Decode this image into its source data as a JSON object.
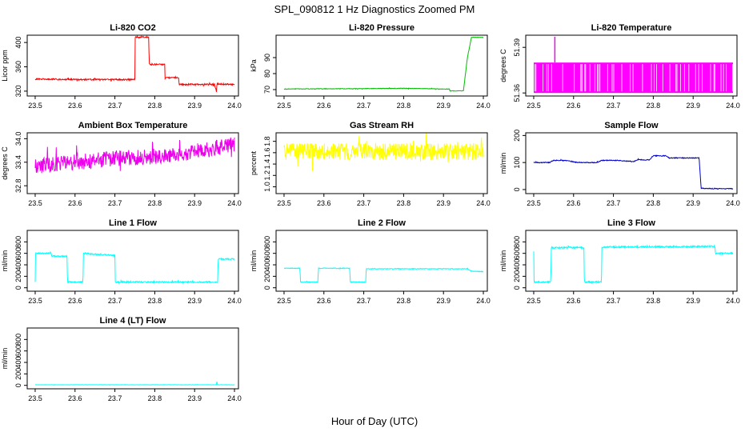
{
  "figure_title": "SPL_090812  1 Hz Diagnostics Zoomed PM",
  "x_axis_label": "Hour of Day (UTC)",
  "chart_data": [
    {
      "type": "line",
      "title": "Li-820 CO2",
      "ylabel": "Licor ppm",
      "color": "#ff0000",
      "xlim": [
        23.48,
        24.01
      ],
      "ylim": [
        312,
        412
      ],
      "yticks": [
        320,
        360,
        400
      ],
      "ytick_labels": [
        "320",
        "360",
        "400"
      ],
      "xticks": [
        23.5,
        23.6,
        23.7,
        23.8,
        23.9,
        24.0
      ],
      "xtick_labels": [
        "23.5",
        "23.6",
        "23.7",
        "23.8",
        "23.9",
        "24.0"
      ],
      "x": [
        23.5,
        23.6,
        23.7,
        23.75,
        23.751,
        23.785,
        23.786,
        23.825,
        23.826,
        23.86,
        23.861,
        23.95,
        23.955,
        23.956,
        24.0
      ],
      "y": [
        340,
        339,
        339,
        339,
        409,
        409,
        364,
        364,
        342,
        342,
        331,
        331,
        318,
        332,
        331
      ],
      "noise": 1.2
    },
    {
      "type": "line",
      "title": "Li-820 Pressure",
      "ylabel": "kPa",
      "color": "#00bb00",
      "xlim": [
        23.48,
        24.01
      ],
      "ylim": [
        66,
        104
      ],
      "yticks": [
        70,
        80,
        90
      ],
      "ytick_labels": [
        "70",
        "80",
        "90"
      ],
      "xticks": [
        23.5,
        23.6,
        23.7,
        23.8,
        23.9,
        24.0
      ],
      "xtick_labels": [
        "23.5",
        "23.6",
        "23.7",
        "23.8",
        "23.9",
        "24.0"
      ],
      "x": [
        23.5,
        23.7,
        23.8,
        23.9,
        23.915,
        23.916,
        23.95,
        23.96,
        23.97,
        24.0
      ],
      "y": [
        70.4,
        70.6,
        70.8,
        70.4,
        70.3,
        69.2,
        69.2,
        90,
        102.6,
        102.6
      ],
      "noise": 0.15
    },
    {
      "type": "bars",
      "title": "Li-820 Temperature",
      "ylabel": "degrees C",
      "color": "#ff00ff",
      "xlim": [
        23.48,
        24.01
      ],
      "ylim": [
        51.358,
        51.398
      ],
      "yticks": [
        51.36,
        51.39
      ],
      "ytick_labels": [
        "51.36",
        "51.39"
      ],
      "xticks": [
        23.5,
        23.6,
        23.7,
        23.8,
        23.9,
        24.0
      ],
      "xtick_labels": [
        "23.5",
        "23.6",
        "23.7",
        "23.8",
        "23.9",
        "24.0"
      ],
      "x_start": 23.5,
      "x_end": 24.0,
      "low": 51.36,
      "high": 51.38,
      "spike_x": 23.553,
      "spike_y": 51.397
    },
    {
      "type": "line",
      "title": "Ambient Box Temperature",
      "ylabel": "degrees C",
      "color": "#ee00ee",
      "xlim": [
        23.48,
        24.01
      ],
      "ylim": [
        32.6,
        34.15
      ],
      "yticks": [
        32.8,
        33.4,
        34.0
      ],
      "ytick_labels": [
        "32.8",
        "33.4",
        "34.0"
      ],
      "xticks": [
        23.5,
        23.6,
        23.7,
        23.8,
        23.9,
        24.0
      ],
      "xtick_labels": [
        "23.5",
        "23.6",
        "23.7",
        "23.8",
        "23.9",
        "24.0"
      ],
      "x": [
        23.5,
        23.6,
        23.7,
        23.8,
        23.9,
        24.0
      ],
      "y": [
        33.3,
        33.4,
        33.5,
        33.55,
        33.65,
        33.85
      ],
      "noise": 0.2
    },
    {
      "type": "line",
      "title": "Gas Stream RH",
      "ylabel": "percent",
      "color": "#ffff00",
      "xlim": [
        23.48,
        24.01
      ],
      "ylim": [
        0.88,
        1.95
      ],
      "yticks": [
        1.0,
        1.2,
        1.4,
        1.6,
        1.8
      ],
      "ytick_labels": [
        "1.0",
        "1.2",
        "1.4",
        "1.6",
        "1.8"
      ],
      "xticks": [
        23.5,
        23.6,
        23.7,
        23.8,
        23.9,
        24.0
      ],
      "xtick_labels": [
        "23.5",
        "23.6",
        "23.7",
        "23.8",
        "23.9",
        "24.0"
      ],
      "x": [
        23.5,
        24.0
      ],
      "y": [
        1.62,
        1.62
      ],
      "noise": 0.15
    },
    {
      "type": "line",
      "title": "Sample Flow",
      "ylabel": "ml/min",
      "color": "#0000cc",
      "xlim": [
        23.48,
        24.01
      ],
      "ylim": [
        -15,
        210
      ],
      "yticks": [
        0,
        100,
        200
      ],
      "ytick_labels": [
        "0",
        "100",
        "200"
      ],
      "xticks": [
        23.5,
        23.6,
        23.7,
        23.8,
        23.9,
        24.0
      ],
      "xtick_labels": [
        "23.5",
        "23.6",
        "23.7",
        "23.8",
        "23.9",
        "24.0"
      ],
      "x": [
        23.5,
        23.54,
        23.55,
        23.58,
        23.61,
        23.66,
        23.67,
        23.71,
        23.75,
        23.76,
        23.79,
        23.8,
        23.83,
        23.84,
        23.915,
        23.92,
        23.95,
        24.0
      ],
      "y": [
        100,
        100,
        108,
        108,
        100,
        100,
        108,
        108,
        103,
        110,
        110,
        125,
        125,
        117,
        117,
        5,
        3,
        3
      ],
      "noise": 1.5
    },
    {
      "type": "line",
      "title": "Line 1 Flow",
      "ylabel": "ml/min",
      "color": "#00ffff",
      "xlim": [
        23.48,
        24.01
      ],
      "ylim": [
        -60,
        1000
      ],
      "yticks": [
        0,
        200,
        400,
        600,
        800
      ],
      "ytick_labels": [
        "0",
        "200",
        "400",
        "600",
        "800"
      ],
      "xticks": [
        23.5,
        23.6,
        23.7,
        23.8,
        23.9,
        24.0
      ],
      "xtick_labels": [
        "23.5",
        "23.6",
        "23.7",
        "23.8",
        "23.9",
        "24.0"
      ],
      "x": [
        23.5,
        23.501,
        23.54,
        23.541,
        23.58,
        23.581,
        23.62,
        23.621,
        23.7,
        23.701,
        23.958,
        23.959,
        24.0
      ],
      "y": [
        100,
        600,
        600,
        550,
        550,
        100,
        100,
        600,
        560,
        100,
        100,
        500,
        500
      ],
      "noise": 12
    },
    {
      "type": "line",
      "title": "Line 2 Flow",
      "ylabel": "ml/min",
      "color": "#00ffff",
      "xlim": [
        23.48,
        24.01
      ],
      "ylim": [
        -60,
        1000
      ],
      "yticks": [
        0,
        200,
        400,
        600,
        800
      ],
      "ytick_labels": [
        "0",
        "200",
        "400",
        "600",
        "800"
      ],
      "xticks": [
        23.5,
        23.6,
        23.7,
        23.8,
        23.9,
        24.0
      ],
      "xtick_labels": [
        "23.5",
        "23.6",
        "23.7",
        "23.8",
        "23.9",
        "24.0"
      ],
      "x": [
        23.5,
        23.54,
        23.541,
        23.585,
        23.586,
        23.665,
        23.666,
        23.705,
        23.706,
        23.96,
        23.97,
        24.0
      ],
      "y": [
        340,
        340,
        100,
        100,
        340,
        340,
        100,
        100,
        330,
        330,
        290,
        280
      ],
      "noise": 6
    },
    {
      "type": "line",
      "title": "Line 3 Flow",
      "ylabel": "ml/min",
      "color": "#00ffff",
      "xlim": [
        23.48,
        24.01
      ],
      "ylim": [
        -60,
        1000
      ],
      "yticks": [
        0,
        200,
        400,
        600,
        800
      ],
      "ytick_labels": [
        "0",
        "200",
        "400",
        "600",
        "800"
      ],
      "xticks": [
        23.5,
        23.6,
        23.7,
        23.8,
        23.9,
        24.0
      ],
      "xtick_labels": [
        "23.5",
        "23.6",
        "23.7",
        "23.8",
        "23.9",
        "24.0"
      ],
      "x": [
        23.5,
        23.501,
        23.502,
        23.543,
        23.544,
        23.626,
        23.627,
        23.67,
        23.671,
        23.955,
        23.956,
        24.0
      ],
      "y": [
        650,
        100,
        100,
        100,
        700,
        700,
        100,
        100,
        710,
        720,
        600,
        600
      ],
      "noise": 14
    },
    {
      "type": "line",
      "title": "Line 4 (LT) Flow",
      "ylabel": "ml/min",
      "color": "#00ffff",
      "xlim": [
        23.48,
        24.01
      ],
      "ylim": [
        -60,
        1000
      ],
      "yticks": [
        0,
        200,
        400,
        600,
        800
      ],
      "ytick_labels": [
        "0",
        "200",
        "400",
        "600",
        "800"
      ],
      "xticks": [
        23.5,
        23.6,
        23.7,
        23.8,
        23.9,
        24.0
      ],
      "xtick_labels": [
        "23.5",
        "23.6",
        "23.7",
        "23.8",
        "23.9",
        "24.0"
      ],
      "x": [
        23.5,
        23.955,
        23.956,
        23.957,
        24.0
      ],
      "y": [
        10,
        10,
        80,
        10,
        10
      ],
      "noise": 2
    }
  ]
}
